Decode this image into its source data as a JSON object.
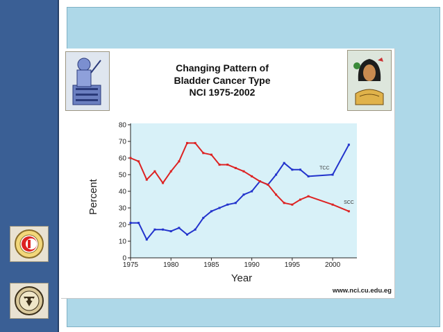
{
  "slide": {
    "title_lines": [
      "Changing Pattern of",
      "Bladder Cancer Type",
      "NCI 1975-2002"
    ],
    "website": "www.nci.cu.edu.eg"
  },
  "logos": {
    "top_left": "pharaonic-scribe-logo",
    "top_right": "pharaonic-bust-logo",
    "side_top": "university-crest-logo",
    "side_bottom": "university-seal-logo"
  },
  "colors": {
    "left_bar": "#3a5f95",
    "panel": "#aed8e8",
    "plot_bg": "#d8f1f8",
    "tcc": "#2233cc",
    "scc": "#dd2222"
  },
  "chart_data": {
    "type": "line",
    "title": "",
    "xlabel": "Year",
    "ylabel": "Percent",
    "xlim": [
      1975,
      2003
    ],
    "ylim": [
      0,
      80
    ],
    "xticks": [
      1975,
      1980,
      1985,
      1990,
      1995,
      2000
    ],
    "yticks": [
      0,
      10,
      20,
      30,
      40,
      50,
      60,
      70,
      80
    ],
    "grid": false,
    "legend": "inline labels",
    "series": [
      {
        "name": "TCC",
        "color": "#2233cc",
        "x": [
          1975,
          1976,
          1977,
          1978,
          1979,
          1980,
          1981,
          1982,
          1983,
          1984,
          1985,
          1986,
          1987,
          1988,
          1989,
          1990,
          1991,
          1992,
          1993,
          1994,
          1995,
          1996,
          1997,
          2000,
          2002
        ],
        "y": [
          21,
          21,
          11,
          17,
          17,
          16,
          18,
          14,
          17,
          24,
          28,
          30,
          32,
          33,
          38,
          40,
          46,
          44,
          50,
          57,
          53,
          53,
          49,
          50,
          68
        ]
      },
      {
        "name": "SCC",
        "color": "#dd2222",
        "x": [
          1975,
          1976,
          1977,
          1978,
          1979,
          1980,
          1981,
          1982,
          1983,
          1984,
          1985,
          1986,
          1987,
          1988,
          1989,
          1990,
          1991,
          1992,
          1993,
          1994,
          1995,
          1996,
          1997,
          2000,
          2002
        ],
        "y": [
          60,
          58,
          47,
          52,
          45,
          52,
          58,
          69,
          69,
          63,
          62,
          56,
          56,
          54,
          52,
          49,
          46,
          44,
          38,
          33,
          32,
          35,
          37,
          32,
          28
        ]
      }
    ]
  }
}
